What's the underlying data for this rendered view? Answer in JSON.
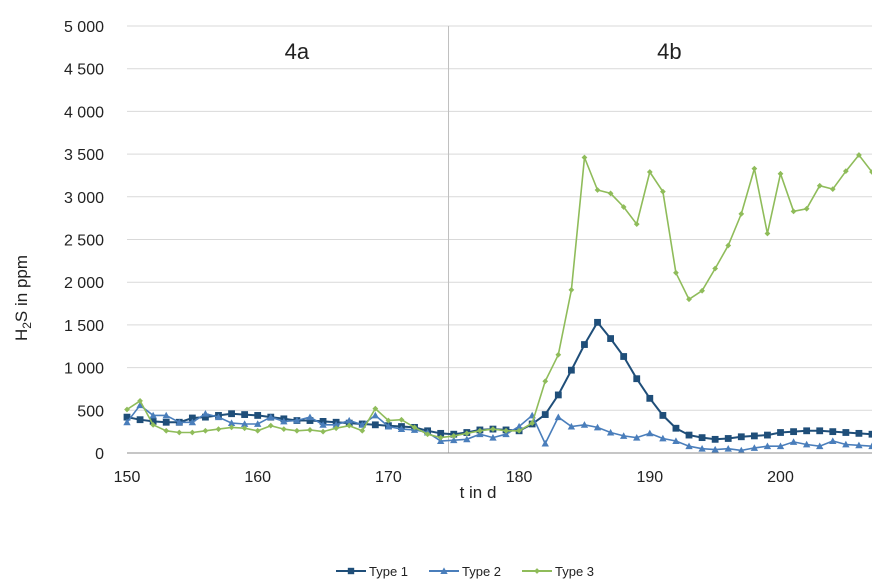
{
  "chart_data": {
    "type": "line",
    "xlabel": "t in d",
    "ylabel": {
      "prefix": "H",
      "sub": "2",
      "suffix": "S in ppm"
    },
    "xlim": [
      150,
      207
    ],
    "ylim": [
      0,
      5000
    ],
    "xticks": [
      150,
      160,
      170,
      180,
      190,
      200
    ],
    "yticks": [
      0,
      500,
      1000,
      1500,
      2000,
      2500,
      3000,
      3500,
      4000,
      4500,
      5000
    ],
    "ytick_labels": [
      "0",
      "500",
      "1 000",
      "1 500",
      "2 000",
      "2 500",
      "3 000",
      "3 500",
      "4 000",
      "4 500",
      "5 000"
    ],
    "grid": "horizontal",
    "phase_divider_x": 174.6,
    "phase_labels": [
      {
        "text": "4a",
        "x": 163
      },
      {
        "text": "4b",
        "x": 191.5
      }
    ],
    "legend_position": "bottom",
    "series": [
      {
        "name": "Type 1",
        "color": "#1f4e79",
        "marker": "square",
        "x": [
          150,
          151,
          152,
          153,
          154,
          155,
          156,
          157,
          158,
          159,
          160,
          161,
          162,
          163,
          164,
          165,
          166,
          167,
          168,
          169,
          170,
          171,
          172,
          173,
          174,
          175,
          176,
          177,
          178,
          179,
          180,
          181,
          182,
          183,
          184,
          185,
          186,
          187,
          188,
          189,
          190,
          191,
          192,
          193,
          194,
          195,
          196,
          197,
          198,
          199,
          200,
          201,
          202,
          203,
          204,
          205,
          206,
          207
        ],
        "values": [
          420,
          390,
          370,
          360,
          360,
          410,
          420,
          440,
          460,
          450,
          440,
          420,
          400,
          380,
          380,
          370,
          360,
          350,
          340,
          330,
          320,
          310,
          300,
          260,
          230,
          220,
          240,
          270,
          280,
          270,
          260,
          340,
          450,
          680,
          970,
          1270,
          1530,
          1340,
          1130,
          870,
          640,
          440,
          290,
          210,
          180,
          160,
          170,
          190,
          200,
          210,
          240,
          250,
          260,
          260,
          250,
          240,
          230,
          220
        ]
      },
      {
        "name": "Type 2",
        "color": "#4a7ebb",
        "marker": "triangle",
        "x": [
          150,
          151,
          152,
          153,
          154,
          155,
          156,
          157,
          158,
          159,
          160,
          161,
          162,
          163,
          164,
          165,
          166,
          167,
          168,
          169,
          170,
          171,
          172,
          173,
          174,
          175,
          176,
          177,
          178,
          179,
          180,
          181,
          182,
          183,
          184,
          185,
          186,
          187,
          188,
          189,
          190,
          191,
          192,
          193,
          194,
          195,
          196,
          197,
          198,
          199,
          200,
          201,
          202,
          203,
          204,
          205,
          206,
          207
        ],
        "values": [
          360,
          560,
          440,
          440,
          360,
          360,
          460,
          420,
          350,
          340,
          340,
          420,
          370,
          380,
          420,
          330,
          330,
          380,
          330,
          440,
          310,
          280,
          270,
          240,
          140,
          150,
          160,
          220,
          180,
          220,
          310,
          440,
          110,
          420,
          310,
          330,
          300,
          240,
          200,
          180,
          230,
          170,
          140,
          80,
          50,
          40,
          50,
          30,
          60,
          80,
          80,
          130,
          100,
          80,
          140,
          100,
          90,
          80
        ]
      },
      {
        "name": "Type 3",
        "color": "#8fbc5a",
        "marker": "diamond",
        "x": [
          150,
          151,
          152,
          153,
          154,
          155,
          156,
          157,
          158,
          159,
          160,
          161,
          162,
          163,
          164,
          165,
          166,
          167,
          168,
          169,
          170,
          171,
          172,
          173,
          174,
          175,
          176,
          177,
          178,
          179,
          180,
          181,
          182,
          183,
          184,
          185,
          186,
          187,
          188,
          189,
          190,
          191,
          192,
          193,
          194,
          195,
          196,
          197,
          198,
          199,
          200,
          201,
          202,
          203,
          204,
          205,
          206,
          207
        ],
        "values": [
          510,
          610,
          330,
          260,
          240,
          240,
          260,
          280,
          300,
          290,
          260,
          320,
          280,
          260,
          270,
          250,
          290,
          320,
          260,
          520,
          380,
          390,
          300,
          220,
          180,
          200,
          230,
          260,
          280,
          260,
          260,
          350,
          840,
          1150,
          1910,
          3460,
          3080,
          3040,
          2880,
          2680,
          3290,
          3060,
          2110,
          1800,
          1900,
          2160,
          2430,
          2800,
          3330,
          2570,
          3270,
          2830,
          2860,
          3130,
          3090,
          3300,
          3490,
          3290
        ]
      }
    ]
  }
}
